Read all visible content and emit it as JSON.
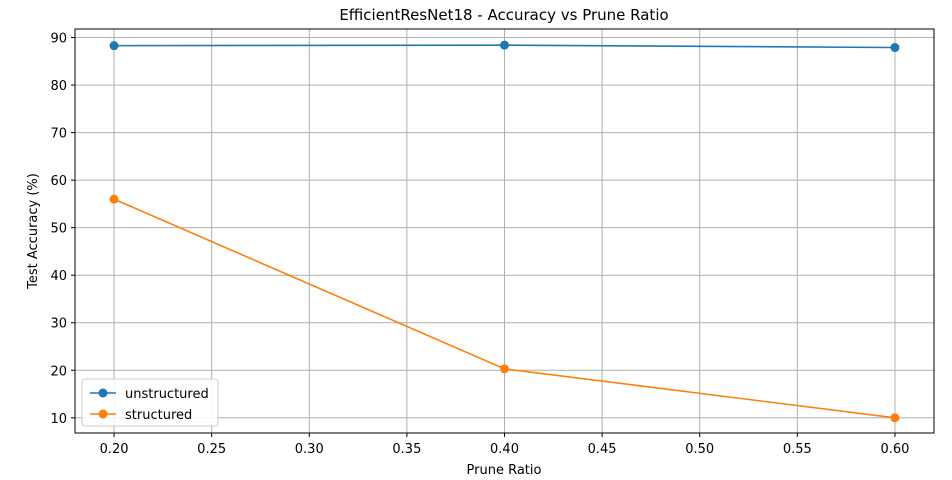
{
  "chart_data": {
    "type": "line",
    "title": "EfficientResNet18 - Accuracy vs Prune Ratio",
    "xlabel": "Prune Ratio",
    "ylabel": "Test Accuracy (%)",
    "x": [
      0.2,
      0.4,
      0.6
    ],
    "xlim": [
      0.18,
      0.62
    ],
    "ylim": [
      6.8,
      91.8
    ],
    "xticks": [
      0.2,
      0.25,
      0.3,
      0.35,
      0.4,
      0.45,
      0.5,
      0.55,
      0.6
    ],
    "xtick_labels": [
      "0.20",
      "0.25",
      "0.30",
      "0.35",
      "0.40",
      "0.45",
      "0.50",
      "0.55",
      "0.60"
    ],
    "yticks": [
      10,
      20,
      30,
      40,
      50,
      60,
      70,
      80,
      90
    ],
    "ytick_labels": [
      "10",
      "20",
      "30",
      "40",
      "50",
      "60",
      "70",
      "80",
      "90"
    ],
    "grid": true,
    "legend_position": "lower-left",
    "series": [
      {
        "name": "unstructured",
        "color": "#1f77b4",
        "marker": "circle",
        "values": [
          88.3,
          88.4,
          87.9
        ]
      },
      {
        "name": "structured",
        "color": "#ff7f0e",
        "marker": "circle",
        "values": [
          56.0,
          20.3,
          10.0
        ]
      }
    ]
  }
}
